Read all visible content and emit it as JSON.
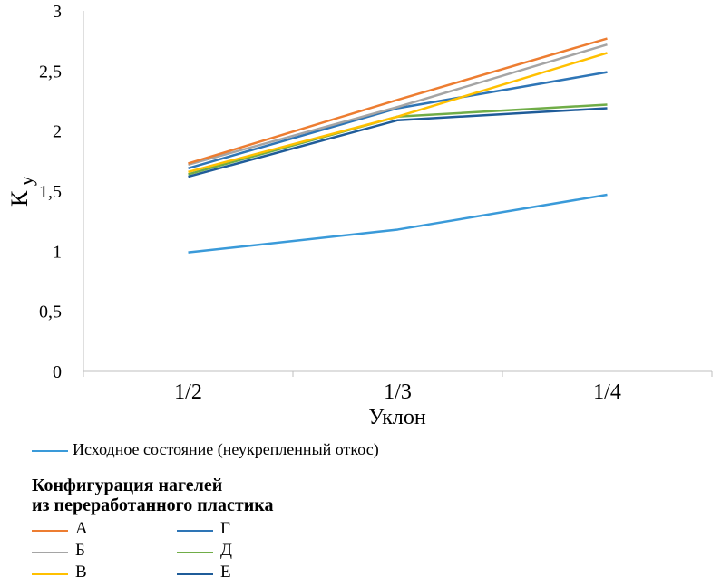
{
  "chart_data": {
    "type": "line",
    "title": "",
    "xlabel": "Уклон",
    "ylabel": "К",
    "ylabel_sub": "у",
    "categories": [
      "1/2",
      "1/3",
      "1/4"
    ],
    "ylim": [
      0,
      3
    ],
    "yticks": [
      "0",
      "0,5",
      "1",
      "1,5",
      "2",
      "2,5",
      "3"
    ],
    "ytick_values": [
      0,
      0.5,
      1,
      1.5,
      2,
      2.5,
      3
    ],
    "grid": false,
    "series": [
      {
        "name": "Исходное состояние (неукрепленный откос)",
        "color": "#3A9AD9",
        "values": [
          0.99,
          1.18,
          1.47
        ]
      },
      {
        "name": "А",
        "color": "#ED7D31",
        "values": [
          1.73,
          2.26,
          2.77
        ]
      },
      {
        "name": "Б",
        "color": "#A5A5A5",
        "values": [
          1.72,
          2.2,
          2.72
        ]
      },
      {
        "name": "В",
        "color": "#FFC000",
        "values": [
          1.66,
          2.12,
          2.65
        ]
      },
      {
        "name": "Г",
        "color": "#2E75B6",
        "values": [
          1.69,
          2.19,
          2.49
        ]
      },
      {
        "name": "Д",
        "color": "#70AD47",
        "values": [
          1.64,
          2.12,
          2.22
        ]
      },
      {
        "name": "Е",
        "color": "#1F5C99",
        "values": [
          1.62,
          2.09,
          2.19
        ]
      }
    ],
    "legend_heading": [
      "Конфигурация нагелей",
      "из переработанного пластика"
    ],
    "legend": "bottom"
  }
}
